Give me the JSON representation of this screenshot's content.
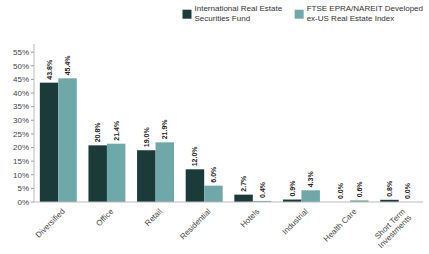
{
  "chart_data": {
    "type": "bar",
    "categories": [
      "Diversified",
      "Office",
      "Retail",
      "Residential",
      "Hotels",
      "Industrial",
      "Health Care",
      "Short Term\nInvestments"
    ],
    "series": [
      {
        "name": "International Real Estate\nSecurities Fund",
        "color": "#1b3a3a",
        "values": [
          43.8,
          20.8,
          19.0,
          12.0,
          2.7,
          0.9,
          0.0,
          0.8
        ],
        "value_labels": [
          "43.8%",
          "20.8%",
          "19.0%",
          "12.0%",
          "2.7%",
          "0.9%",
          "0.0%",
          "0.8%"
        ]
      },
      {
        "name": "FTSE EPRA/NAREIT Developed\nex-US Real Estate Index",
        "color": "#6fa8a8",
        "values": [
          45.4,
          21.4,
          21.9,
          6.0,
          0.4,
          4.3,
          0.6,
          0.0
        ],
        "value_labels": [
          "45.4%",
          "21.4%",
          "21.9%",
          "6.0%",
          "0.4%",
          "4.3%",
          "0.6%",
          "0.0%"
        ]
      }
    ],
    "ylim": [
      0,
      58
    ],
    "yticks": [
      {
        "value": 0,
        "label": "0%"
      },
      {
        "value": 5,
        "label": "5%"
      },
      {
        "value": 10,
        "label": "10%"
      },
      {
        "value": 15,
        "label": "15%"
      },
      {
        "value": 20,
        "label": "20%"
      },
      {
        "value": 25,
        "label": "25%"
      },
      {
        "value": 30,
        "label": "30%"
      },
      {
        "value": 35,
        "label": "35%"
      },
      {
        "value": 40,
        "label": "40%"
      },
      {
        "value": 45,
        "label": "45%"
      },
      {
        "value": 50,
        "label": "50%"
      },
      {
        "value": 55,
        "label": "55%"
      }
    ],
    "grid": false,
    "legend": "upper right",
    "data_labels": true
  }
}
